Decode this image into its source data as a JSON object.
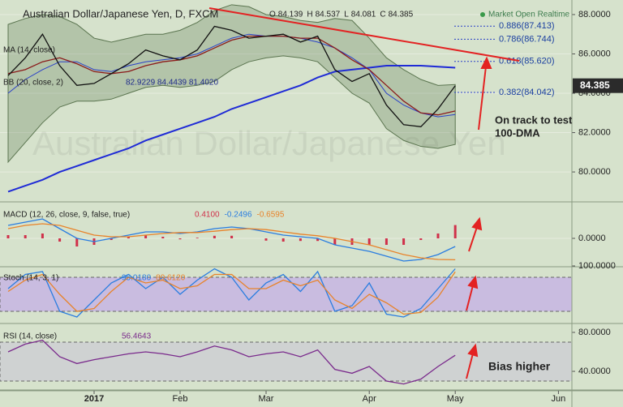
{
  "chart_data": [
    {
      "type": "line",
      "title": "Australian Dollar/Japanese Yen, D, FXCM",
      "watermark": "Australian Dollar/Japanese Yen",
      "ohlc": [
        {
          "label": "O",
          "value": 84.139
        },
        {
          "label": "H",
          "value": 84.537
        },
        {
          "label": "L",
          "value": 84.081
        },
        {
          "label": "C",
          "value": 84.385
        }
      ],
      "status": "Market Open Realtime",
      "categories": [
        null,
        null,
        null,
        null,
        null,
        "2017",
        null,
        null,
        null,
        null,
        "Feb",
        null,
        null,
        null,
        null,
        "Mar",
        null,
        null,
        null,
        null,
        null,
        "Apr",
        null,
        null,
        null,
        null,
        "May",
        null,
        null,
        null,
        null,
        null,
        "Jun"
      ],
      "ylim": [
        78.52,
        88.74
      ],
      "yticks": [
        {
          "value": 80,
          "label": "80.0000"
        },
        {
          "value": 82,
          "label": "82.0000"
        },
        {
          "value": 84,
          "label": "84.0000"
        },
        {
          "value": 86,
          "label": "86.0000"
        },
        {
          "value": 88,
          "label": "88.0000"
        }
      ],
      "grid": true,
      "bands": {
        "name": "BB (20, close, 2)",
        "readout": "82.9229 84.4439 81.4020",
        "color": "#5b7550",
        "upper": [
          87.5,
          87.8,
          88.0,
          87.9,
          87.5,
          86.8,
          86.6,
          86.8,
          87.0,
          87.0,
          87.2,
          87.6,
          88.2,
          88.5,
          88.4,
          88.0,
          87.9,
          87.7,
          87.6,
          87.8,
          87.7,
          86.8,
          85.8,
          85.2,
          84.7,
          84.4,
          84.4439,
          null,
          null,
          null,
          null,
          null,
          null
        ],
        "middle": [
          84.0,
          84.7,
          85.2,
          85.6,
          85.6,
          85.2,
          85.1,
          85.4,
          85.6,
          85.7,
          85.8,
          86.0,
          86.4,
          86.8,
          87.0,
          86.9,
          86.9,
          86.8,
          86.6,
          86.3,
          85.8,
          85.2,
          84.0,
          83.4,
          83.0,
          82.8,
          82.9229,
          null,
          null,
          null,
          null,
          null,
          null
        ],
        "lower": [
          80.5,
          81.5,
          82.5,
          83.3,
          83.6,
          83.6,
          83.7,
          84.0,
          84.3,
          84.4,
          84.3,
          84.4,
          84.6,
          85.2,
          85.6,
          85.8,
          85.9,
          85.8,
          85.6,
          84.8,
          84.0,
          83.5,
          82.2,
          81.6,
          81.3,
          81.2,
          81.402,
          null,
          null,
          null,
          null,
          null,
          null
        ]
      },
      "series": [
        {
          "color": "#1f2bd6",
          "values": [
            79.0,
            79.3,
            79.6,
            80.0,
            80.3,
            80.6,
            80.9,
            81.2,
            81.6,
            81.9,
            82.2,
            82.5,
            82.8,
            83.2,
            83.5,
            83.8,
            84.1,
            84.4,
            84.8,
            85.1,
            85.2,
            85.3,
            85.4,
            85.4,
            85.4,
            85.35,
            85.3,
            null,
            null,
            null,
            null,
            null,
            null
          ]
        },
        {
          "name": "MA (14, close)",
          "color": "#8b1a1a",
          "values": [
            85.0,
            85.2,
            85.6,
            85.8,
            85.5,
            85.1,
            85.0,
            85.1,
            85.4,
            85.6,
            85.7,
            85.9,
            86.3,
            86.7,
            86.9,
            86.9,
            86.9,
            86.8,
            86.8,
            86.3,
            85.7,
            85.2,
            84.4,
            83.6,
            83.0,
            82.9,
            83.1,
            null,
            null,
            null,
            null,
            null,
            null
          ]
        },
        {
          "color": "#111111",
          "values": [
            84.9,
            85.8,
            87.0,
            85.4,
            84.4,
            84.5,
            85.0,
            85.5,
            86.2,
            85.9,
            85.7,
            86.2,
            87.4,
            87.2,
            86.8,
            86.9,
            87.0,
            86.6,
            86.9,
            85.2,
            84.6,
            85.0,
            83.4,
            82.4,
            82.3,
            83.2,
            84.385,
            null,
            null,
            null,
            null,
            null,
            null
          ]
        }
      ],
      "last_price": 84.385,
      "fib_levels": [
        {
          "label": "0.886(87.413)",
          "value": 87.413
        },
        {
          "label": "0.786(86.744)",
          "value": 86.744
        },
        {
          "label": "0.618(85.620)",
          "value": 85.62
        },
        {
          "label": "0.382(84.042)",
          "value": 84.042
        }
      ],
      "annotation": [
        "On track to test",
        "100-DMA"
      ]
    },
    {
      "type": "line",
      "title": "MACD (12, 26, close, 9, false, true)",
      "readout": [
        "0.4100",
        "-0.2496",
        "-0.6595"
      ],
      "ylim": [
        -0.85,
        1.1
      ],
      "yticks": [
        {
          "value": 0,
          "label": "0.0000"
        }
      ],
      "grid": true,
      "series": [
        {
          "style": "histogram",
          "color": "#d0304a",
          "values": [
            0.1,
            0.1,
            0.15,
            -0.1,
            -0.25,
            -0.2,
            -0.05,
            0.05,
            0.1,
            0.05,
            -0.03,
            0.02,
            0.08,
            0.08,
            0.0,
            -0.07,
            -0.1,
            -0.08,
            -0.08,
            -0.2,
            -0.2,
            -0.2,
            -0.2,
            -0.2,
            -0.05,
            0.15,
            0.41,
            null,
            null,
            null,
            null,
            null,
            null
          ]
        },
        {
          "color": "#2a7de0",
          "values": [
            0.4,
            0.5,
            0.6,
            0.3,
            0.0,
            -0.1,
            0.0,
            0.1,
            0.2,
            0.2,
            0.15,
            0.2,
            0.3,
            0.35,
            0.3,
            0.2,
            0.1,
            0.05,
            0.0,
            -0.2,
            -0.3,
            -0.4,
            -0.55,
            -0.7,
            -0.65,
            -0.5,
            -0.2496,
            null,
            null,
            null,
            null,
            null,
            null
          ]
        },
        {
          "color": "#e8832a",
          "values": [
            0.3,
            0.4,
            0.45,
            0.4,
            0.25,
            0.1,
            0.05,
            0.05,
            0.1,
            0.15,
            0.18,
            0.18,
            0.22,
            0.27,
            0.3,
            0.27,
            0.2,
            0.13,
            0.08,
            0.0,
            -0.1,
            -0.2,
            -0.35,
            -0.5,
            -0.6,
            -0.65,
            -0.6595,
            null,
            null,
            null,
            null,
            null,
            null
          ]
        }
      ]
    },
    {
      "type": "line",
      "title": "Stoch (14, 3, 1)",
      "readout": [
        "95.0180",
        "89.6120"
      ],
      "ylim": [
        0,
        100
      ],
      "yticks": [
        {
          "value": 100,
          "label": "100.0000"
        }
      ],
      "band": [
        20,
        80
      ],
      "band_color": "#c9bce0",
      "series": [
        {
          "color": "#2a7de0",
          "values": [
            60,
            85,
            90,
            20,
            10,
            40,
            70,
            85,
            60,
            80,
            50,
            75,
            95,
            80,
            40,
            70,
            85,
            55,
            90,
            20,
            30,
            70,
            15,
            10,
            25,
            60,
            95.018,
            null,
            null,
            null,
            null,
            null,
            null
          ]
        },
        {
          "color": "#e8832a",
          "values": [
            55,
            75,
            85,
            50,
            20,
            25,
            55,
            80,
            70,
            75,
            60,
            65,
            85,
            85,
            60,
            60,
            75,
            65,
            75,
            40,
            25,
            50,
            35,
            15,
            18,
            45,
            89.612,
            null,
            null,
            null,
            null,
            null,
            null
          ]
        }
      ]
    },
    {
      "type": "line",
      "title": "RSI (14, close)",
      "readout": [
        "56.4643"
      ],
      "ylim": [
        21.7,
        88.3
      ],
      "yticks": [
        {
          "value": 80,
          "label": "80.0000"
        },
        {
          "value": 40,
          "label": "40.0000"
        }
      ],
      "band": [
        30,
        70
      ],
      "band_color": "#cfd2d2",
      "series": [
        {
          "color": "#7a2a8c",
          "values": [
            60,
            68,
            72,
            55,
            48,
            52,
            55,
            58,
            60,
            58,
            55,
            60,
            66,
            62,
            55,
            58,
            60,
            55,
            62,
            42,
            38,
            45,
            30,
            27,
            32,
            45,
            56.4643,
            null,
            null,
            null,
            null,
            null,
            null
          ]
        }
      ],
      "annotation": "Bias higher"
    }
  ]
}
